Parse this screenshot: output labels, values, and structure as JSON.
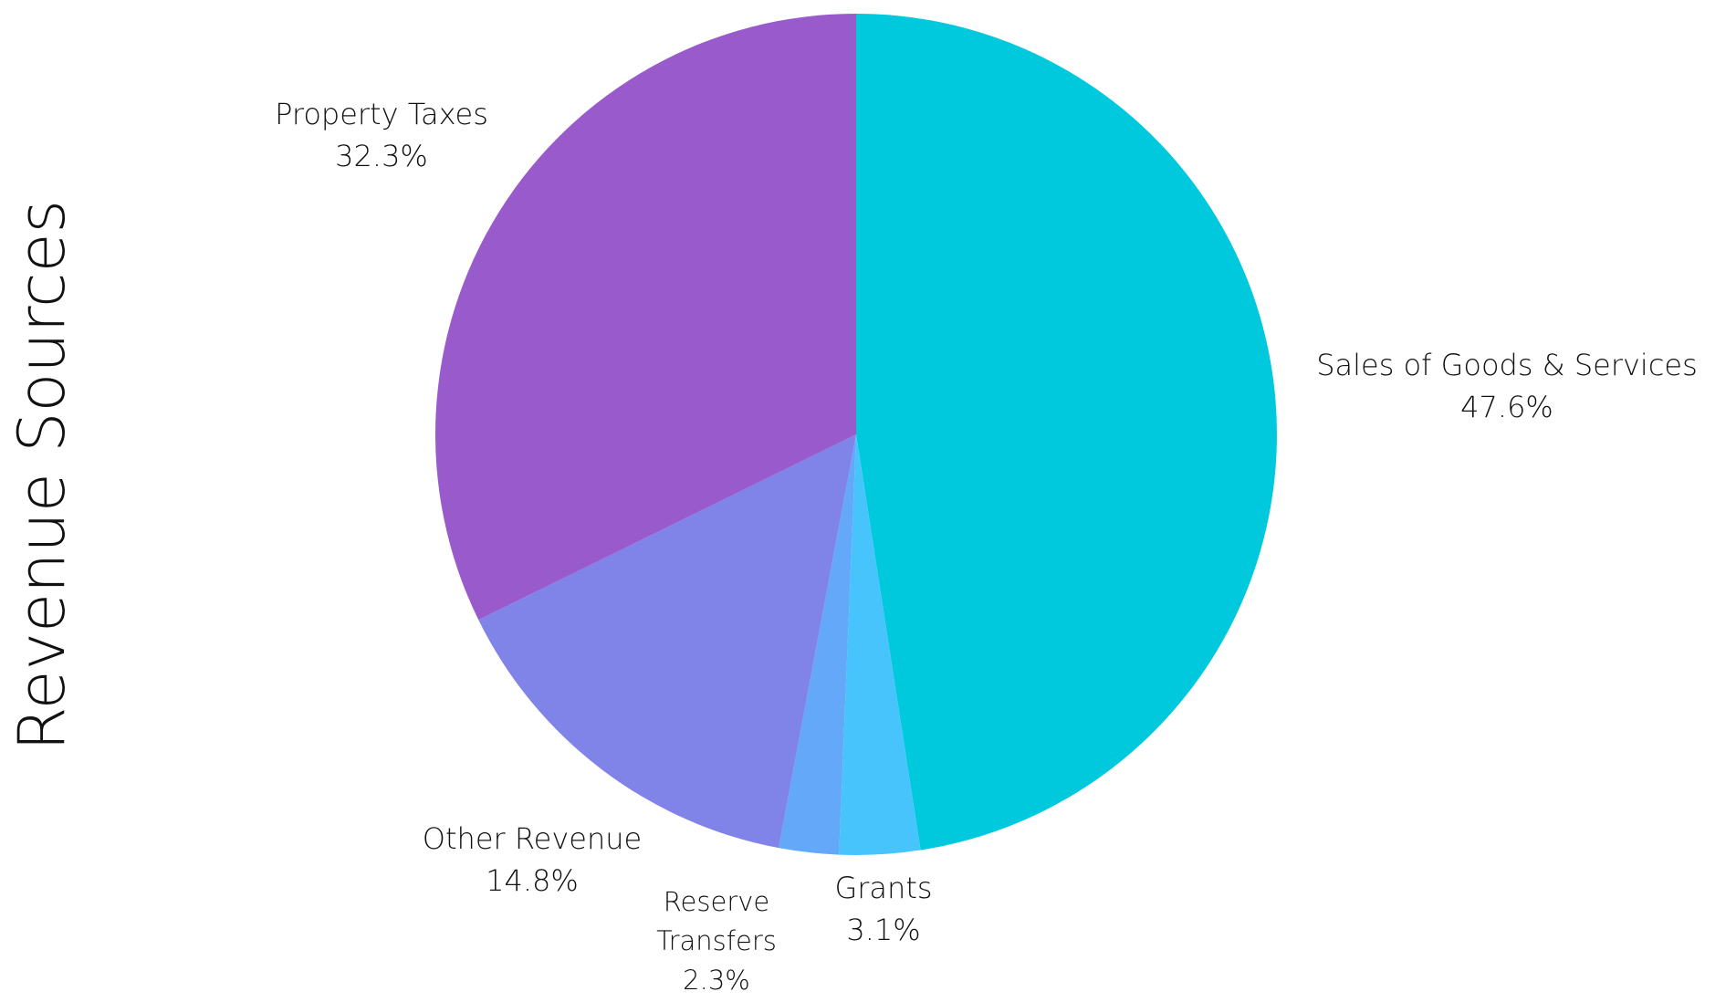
{
  "chart_data": {
    "type": "pie",
    "title": "Revenue Sources",
    "categories": [
      "Sales of Goods & Services",
      "Grants",
      "Reserve Transfers",
      "Other Revenue",
      "Property Taxes"
    ],
    "values": [
      47.6,
      3.1,
      2.3,
      14.8,
      32.3
    ],
    "value_labels": [
      "47.6%",
      "3.1%",
      "2.3%",
      "14.8%",
      "32.3%"
    ],
    "colors": [
      "#00c9dd",
      "#48c4fd",
      "#64a8fa",
      "#8083e7",
      "#995acb"
    ]
  }
}
